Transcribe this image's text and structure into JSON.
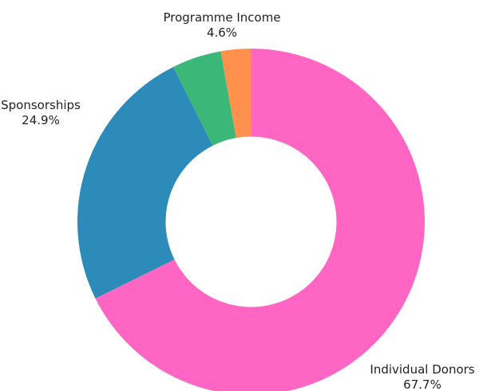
{
  "chart_data": {
    "type": "pie",
    "donut": true,
    "title": "",
    "start_angle_deg": 0,
    "direction": "clockwise",
    "slices": [
      {
        "name": "Individual Donors",
        "value": 67.7,
        "label": "Individual Donors",
        "pct_label": "67.7%",
        "color": "#ff66c4"
      },
      {
        "name": "Sponsorships",
        "value": 24.9,
        "label": "Sponsorships",
        "pct_label": "24.9%",
        "color": "#2d8bba"
      },
      {
        "name": "Programme Income",
        "value": 4.6,
        "label": "Programme Income",
        "pct_label": "4.6%",
        "color": "#3bb877"
      },
      {
        "name": "",
        "value": 2.8,
        "label": "",
        "pct_label": "",
        "color": "#ff914d"
      }
    ]
  }
}
